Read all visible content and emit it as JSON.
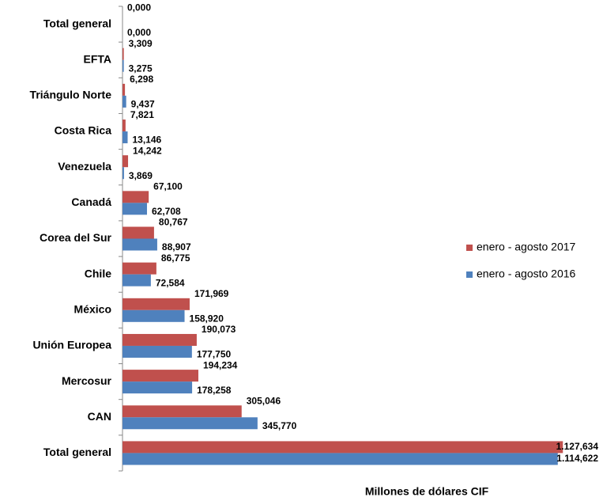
{
  "chart_data": {
    "type": "hbar",
    "x_label": "Millones de dólares CIF",
    "categories": [
      "Total general",
      "EFTA",
      "Triángulo Norte",
      "Costa Rica",
      "Venezuela",
      "Canadá",
      "Corea del Sur",
      "Chile",
      "México",
      "Unión Europea",
      "Mercosur",
      "CAN",
      "Total general"
    ],
    "series": [
      {
        "name": "enero - agosto 2017",
        "color": "#c0504d",
        "values": [
          0,
          3.309,
          6.298,
          7.821,
          14.242,
          67.1,
          80.767,
          86.775,
          171.969,
          190.073,
          194.234,
          305.046,
          1127.634
        ],
        "value_labels": [
          "0,000",
          "3,309",
          "6,298",
          "7,821",
          "14,242",
          "67,100",
          "80,767",
          "86,775",
          "171,969",
          "190,073",
          "194,234",
          "305,046",
          "1.127,634"
        ]
      },
      {
        "name": "enero - agosto 2016",
        "color": "#4f81bd",
        "values": [
          0,
          3.275,
          9.437,
          13.146,
          3.869,
          62.708,
          88.907,
          72.584,
          158.92,
          177.75,
          178.258,
          345.77,
          1114.622
        ],
        "value_labels": [
          "0,000",
          "3,275",
          "9,437",
          "13,146",
          "3,869",
          "62,708",
          "88,907",
          "72,584",
          "158,920",
          "177,750",
          "178,258",
          "345,770",
          "1.114,622"
        ]
      }
    ],
    "xlim": [
      0,
      1200
    ],
    "legend": "right"
  }
}
